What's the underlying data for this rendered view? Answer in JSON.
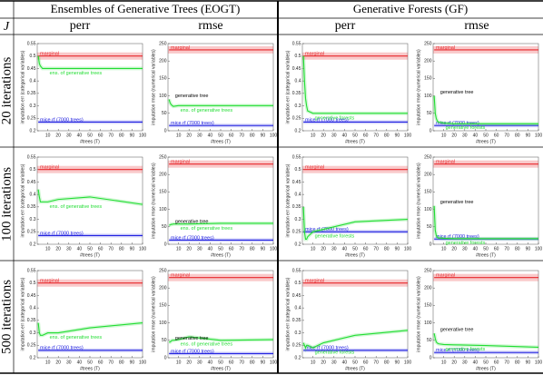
{
  "header": {
    "eogt": "Ensembles of Generative Trees (EOGT)",
    "gf": "Generative Forests (GF)",
    "j": "J",
    "columns": [
      "perr",
      "rmse",
      "perr",
      "rmse"
    ],
    "rows": [
      "20 iterations",
      "100 iterations",
      "500 iterations"
    ]
  },
  "chart_data": [
    {
      "type": "line",
      "xlabel": "#trees (T)",
      "ylabel": "imputation err (categorical variables)",
      "x": [
        1,
        2,
        3,
        4,
        5,
        10,
        20,
        50,
        100
      ],
      "xlim": [
        0,
        100
      ],
      "xticks": [
        10,
        20,
        30,
        40,
        50,
        60,
        70,
        80,
        90,
        100
      ],
      "ylim": [
        0.2,
        0.55
      ],
      "yticks": [
        0.2,
        0.25,
        0.3,
        0.35,
        0.4,
        0.45,
        0.5,
        0.55
      ],
      "series": [
        {
          "name": "marginal",
          "color": "#e8272b",
          "values": [
            0.5,
            0.5,
            0.5,
            0.5,
            0.5,
            0.5,
            0.5,
            0.5,
            0.5
          ]
        },
        {
          "name": "mice rf (7000 trees)",
          "color": "#2323e0",
          "values": [
            0.235,
            0.235,
            0.235,
            0.235,
            0.235,
            0.235,
            0.235,
            0.235,
            0.235
          ]
        },
        {
          "name": "ens. of generative trees",
          "color": "#22dd33",
          "values": [
            0.5,
            0.47,
            0.46,
            0.455,
            0.45,
            0.45,
            0.45,
            0.45,
            0.45
          ]
        }
      ]
    },
    {
      "type": "line",
      "xlabel": "#trees (T)",
      "ylabel": "imputation rmse (numerical variables)",
      "annotation": "generative tree",
      "x": [
        1,
        2,
        3,
        4,
        5,
        10,
        20,
        50,
        100
      ],
      "xlim": [
        0,
        100
      ],
      "xticks": [
        10,
        20,
        30,
        40,
        50,
        60,
        70,
        80,
        90,
        100
      ],
      "ylim": [
        0,
        250
      ],
      "yticks": [
        0,
        50,
        100,
        150,
        200,
        250
      ],
      "series": [
        {
          "name": "marginal",
          "color": "#e8272b",
          "values": [
            232,
            232,
            232,
            232,
            232,
            232,
            232,
            232,
            232
          ]
        },
        {
          "name": "mice rf (7000 trees)",
          "color": "#2323e0",
          "values": [
            15,
            15,
            15,
            15,
            15,
            15,
            15,
            15,
            15
          ]
        },
        {
          "name": "ens. of generative trees",
          "color": "#22dd33",
          "values": [
            90,
            80,
            75,
            72,
            70,
            72,
            72,
            72,
            72
          ]
        }
      ]
    },
    {
      "type": "line",
      "xlabel": "#trees (T)",
      "ylabel": "imputation err (categorical variables)",
      "x": [
        1,
        2,
        3,
        4,
        5,
        10,
        20,
        50,
        100
      ],
      "xlim": [
        0,
        100
      ],
      "xticks": [
        10,
        20,
        30,
        40,
        50,
        60,
        70,
        80,
        90,
        100
      ],
      "ylim": [
        0.2,
        0.55
      ],
      "yticks": [
        0.2,
        0.25,
        0.3,
        0.35,
        0.4,
        0.45,
        0.5,
        0.55
      ],
      "series": [
        {
          "name": "marginal",
          "color": "#e8272b",
          "values": [
            0.5,
            0.5,
            0.5,
            0.5,
            0.5,
            0.5,
            0.5,
            0.5,
            0.5
          ]
        },
        {
          "name": "mice rf (7000 trees)",
          "color": "#2323e0",
          "values": [
            0.235,
            0.235,
            0.235,
            0.235,
            0.235,
            0.235,
            0.235,
            0.235,
            0.235
          ]
        },
        {
          "name": "generative forests",
          "color": "#22dd33",
          "values": [
            0.5,
            0.4,
            0.33,
            0.3,
            0.28,
            0.27,
            0.27,
            0.27,
            0.27
          ]
        }
      ]
    },
    {
      "type": "line",
      "xlabel": "#trees (T)",
      "ylabel": "imputation rmse (numerical variables)",
      "annotation": "generative tree",
      "x": [
        1,
        2,
        3,
        4,
        5,
        10,
        20,
        50,
        100
      ],
      "xlim": [
        0,
        100
      ],
      "xticks": [
        10,
        20,
        30,
        40,
        50,
        60,
        70,
        80,
        90,
        100
      ],
      "ylim": [
        0,
        250
      ],
      "yticks": [
        0,
        50,
        100,
        150,
        200,
        250
      ],
      "series": [
        {
          "name": "marginal",
          "color": "#e8272b",
          "values": [
            232,
            232,
            232,
            232,
            232,
            232,
            232,
            232,
            232
          ]
        },
        {
          "name": "mice rf (7000 trees)",
          "color": "#2323e0",
          "values": [
            15,
            15,
            15,
            15,
            15,
            15,
            15,
            15,
            15
          ]
        },
        {
          "name": "generative forests",
          "color": "#22dd33",
          "values": [
            100,
            50,
            35,
            28,
            25,
            22,
            20,
            20,
            20
          ]
        }
      ]
    },
    {
      "type": "line",
      "xlabel": "#trees (T)",
      "ylabel": "imputation err (categorical variables)",
      "x": [
        1,
        2,
        3,
        4,
        5,
        10,
        20,
        50,
        100
      ],
      "xlim": [
        0,
        100
      ],
      "xticks": [
        10,
        20,
        30,
        40,
        50,
        60,
        70,
        80,
        90,
        100
      ],
      "ylim": [
        0.2,
        0.55
      ],
      "yticks": [
        0.2,
        0.25,
        0.3,
        0.35,
        0.4,
        0.45,
        0.5,
        0.55
      ],
      "series": [
        {
          "name": "marginal",
          "color": "#e8272b",
          "values": [
            0.5,
            0.5,
            0.5,
            0.5,
            0.5,
            0.5,
            0.5,
            0.5,
            0.5
          ]
        },
        {
          "name": "mice rf (7000 trees)",
          "color": "#2323e0",
          "values": [
            0.235,
            0.235,
            0.235,
            0.235,
            0.235,
            0.235,
            0.235,
            0.235,
            0.235
          ]
        },
        {
          "name": "ens. of generative trees",
          "color": "#22dd33",
          "values": [
            0.42,
            0.39,
            0.37,
            0.37,
            0.37,
            0.37,
            0.38,
            0.39,
            0.36
          ]
        }
      ]
    },
    {
      "type": "line",
      "xlabel": "#trees (T)",
      "ylabel": "imputation rmse (numerical variables)",
      "annotation": "generative tree",
      "x": [
        1,
        2,
        3,
        4,
        5,
        10,
        20,
        50,
        100
      ],
      "xlim": [
        0,
        100
      ],
      "xticks": [
        10,
        20,
        30,
        40,
        50,
        60,
        70,
        80,
        90,
        100
      ],
      "ylim": [
        0,
        250
      ],
      "yticks": [
        0,
        50,
        100,
        150,
        200,
        250
      ],
      "series": [
        {
          "name": "marginal",
          "color": "#e8272b",
          "values": [
            230,
            230,
            230,
            230,
            230,
            230,
            230,
            230,
            230
          ]
        },
        {
          "name": "mice rf (7000 trees)",
          "color": "#2323e0",
          "values": [
            12,
            12,
            12,
            12,
            12,
            12,
            12,
            12,
            12
          ]
        },
        {
          "name": "ens. of generative trees",
          "color": "#22dd33",
          "values": [
            55,
            55,
            57,
            57,
            58,
            58,
            58,
            60,
            60
          ]
        }
      ]
    },
    {
      "type": "line",
      "xlabel": "#trees (T)",
      "ylabel": "imputation err (categorical variables)",
      "x": [
        1,
        2,
        3,
        4,
        5,
        10,
        20,
        50,
        100
      ],
      "xlim": [
        0,
        100
      ],
      "xticks": [
        10,
        20,
        30,
        40,
        50,
        60,
        70,
        80,
        90,
        100
      ],
      "ylim": [
        0.2,
        0.55
      ],
      "yticks": [
        0.2,
        0.25,
        0.3,
        0.35,
        0.4,
        0.45,
        0.5,
        0.55
      ],
      "series": [
        {
          "name": "marginal",
          "color": "#e8272b",
          "values": [
            0.5,
            0.5,
            0.5,
            0.5,
            0.5,
            0.5,
            0.5,
            0.5,
            0.5
          ]
        },
        {
          "name": "mice rf (7000 trees)",
          "color": "#2323e0",
          "values": [
            0.25,
            0.25,
            0.25,
            0.25,
            0.25,
            0.25,
            0.25,
            0.25,
            0.25
          ]
        },
        {
          "name": "generative forests",
          "color": "#22dd33",
          "values": [
            0.35,
            0.25,
            0.22,
            0.22,
            0.23,
            0.25,
            0.26,
            0.29,
            0.3
          ]
        }
      ]
    },
    {
      "type": "line",
      "xlabel": "#trees (T)",
      "ylabel": "imputation rmse (numerical variables)",
      "annotation": "generative tree",
      "x": [
        1,
        2,
        3,
        4,
        5,
        10,
        20,
        50,
        100
      ],
      "xlim": [
        0,
        100
      ],
      "xticks": [
        10,
        20,
        30,
        40,
        50,
        60,
        70,
        80,
        90,
        100
      ],
      "ylim": [
        0,
        250
      ],
      "yticks": [
        0,
        50,
        100,
        150,
        200,
        250
      ],
      "series": [
        {
          "name": "marginal",
          "color": "#e8272b",
          "values": [
            230,
            230,
            230,
            230,
            230,
            230,
            230,
            230,
            230
          ]
        },
        {
          "name": "mice rf (7000 trees)",
          "color": "#2323e0",
          "values": [
            15,
            15,
            15,
            15,
            15,
            15,
            15,
            15,
            15
          ]
        },
        {
          "name": "generative forests",
          "color": "#22dd33",
          "values": [
            110,
            40,
            25,
            20,
            18,
            17,
            16,
            16,
            16
          ]
        }
      ]
    },
    {
      "type": "line",
      "xlabel": "#trees (T)",
      "ylabel": "imputation err (categorical variables)",
      "x": [
        1,
        2,
        3,
        4,
        5,
        10,
        20,
        50,
        100
      ],
      "xlim": [
        0,
        100
      ],
      "xticks": [
        10,
        20,
        30,
        40,
        50,
        60,
        70,
        80,
        90,
        100
      ],
      "ylim": [
        0.2,
        0.55
      ],
      "yticks": [
        0.2,
        0.25,
        0.3,
        0.35,
        0.4,
        0.45,
        0.5,
        0.55
      ],
      "series": [
        {
          "name": "marginal",
          "color": "#e8272b",
          "values": [
            0.5,
            0.5,
            0.5,
            0.5,
            0.5,
            0.5,
            0.5,
            0.5,
            0.5
          ]
        },
        {
          "name": "mice rf (7000 trees)",
          "color": "#2323e0",
          "values": [
            0.23,
            0.23,
            0.23,
            0.23,
            0.23,
            0.23,
            0.23,
            0.23,
            0.23
          ]
        },
        {
          "name": "ens. of generative trees",
          "color": "#22dd33",
          "values": [
            0.34,
            0.3,
            0.29,
            0.29,
            0.29,
            0.3,
            0.3,
            0.32,
            0.34
          ]
        }
      ]
    },
    {
      "type": "line",
      "xlabel": "#trees (T)",
      "ylabel": "imputation rmse (numerical variables)",
      "annotation": "generative tree",
      "x": [
        1,
        2,
        3,
        4,
        5,
        10,
        20,
        50,
        100
      ],
      "xlim": [
        0,
        100
      ],
      "xticks": [
        10,
        20,
        30,
        40,
        50,
        60,
        70,
        80,
        90,
        100
      ],
      "ylim": [
        0,
        250
      ],
      "yticks": [
        0,
        50,
        100,
        150,
        200,
        250
      ],
      "series": [
        {
          "name": "marginal",
          "color": "#e8272b",
          "values": [
            230,
            230,
            230,
            230,
            230,
            230,
            230,
            230,
            230
          ]
        },
        {
          "name": "mice rf (7000 trees)",
          "color": "#2323e0",
          "values": [
            12,
            12,
            12,
            12,
            12,
            12,
            12,
            12,
            12
          ]
        },
        {
          "name": "ens. of generative trees",
          "color": "#22dd33",
          "values": [
            45,
            45,
            48,
            50,
            50,
            52,
            60,
            50,
            52
          ]
        }
      ]
    },
    {
      "type": "line",
      "xlabel": "#trees (T)",
      "ylabel": "imputation err (categorical variables)",
      "x": [
        1,
        2,
        3,
        4,
        5,
        10,
        20,
        50,
        100
      ],
      "xlim": [
        0,
        100
      ],
      "xticks": [
        10,
        20,
        30,
        40,
        50,
        60,
        70,
        80,
        90,
        100
      ],
      "ylim": [
        0.2,
        0.55
      ],
      "yticks": [
        0.2,
        0.25,
        0.3,
        0.35,
        0.4,
        0.45,
        0.5,
        0.55
      ],
      "series": [
        {
          "name": "marginal",
          "color": "#e8272b",
          "values": [
            0.5,
            0.5,
            0.5,
            0.5,
            0.5,
            0.5,
            0.5,
            0.5,
            0.5
          ]
        },
        {
          "name": "mice rf (7000 trees)",
          "color": "#2323e0",
          "values": [
            0.23,
            0.23,
            0.23,
            0.23,
            0.23,
            0.23,
            0.23,
            0.23,
            0.23
          ]
        },
        {
          "name": "generative forests",
          "color": "#22dd33",
          "values": [
            0.26,
            0.25,
            0.24,
            0.25,
            0.25,
            0.24,
            0.26,
            0.29,
            0.31
          ]
        }
      ]
    },
    {
      "type": "line",
      "xlabel": "#trees (T)",
      "ylabel": "imputation rmse (numerical variables)",
      "annotation": "generative tree",
      "x": [
        1,
        2,
        3,
        4,
        5,
        10,
        20,
        50,
        100
      ],
      "xlim": [
        0,
        100
      ],
      "xticks": [
        10,
        20,
        30,
        40,
        50,
        60,
        70,
        80,
        90,
        100
      ],
      "ylim": [
        0,
        250
      ],
      "yticks": [
        0,
        50,
        100,
        150,
        200,
        250
      ],
      "series": [
        {
          "name": "marginal",
          "color": "#e8272b",
          "values": [
            230,
            230,
            230,
            230,
            230,
            230,
            230,
            230,
            230
          ]
        },
        {
          "name": "mice rf (7000 trees)",
          "color": "#2323e0",
          "values": [
            15,
            15,
            15,
            15,
            15,
            15,
            15,
            15,
            15
          ]
        },
        {
          "name": "generative forests",
          "color": "#22dd33",
          "values": [
            70,
            55,
            45,
            42,
            40,
            38,
            37,
            35,
            30
          ]
        }
      ]
    }
  ]
}
